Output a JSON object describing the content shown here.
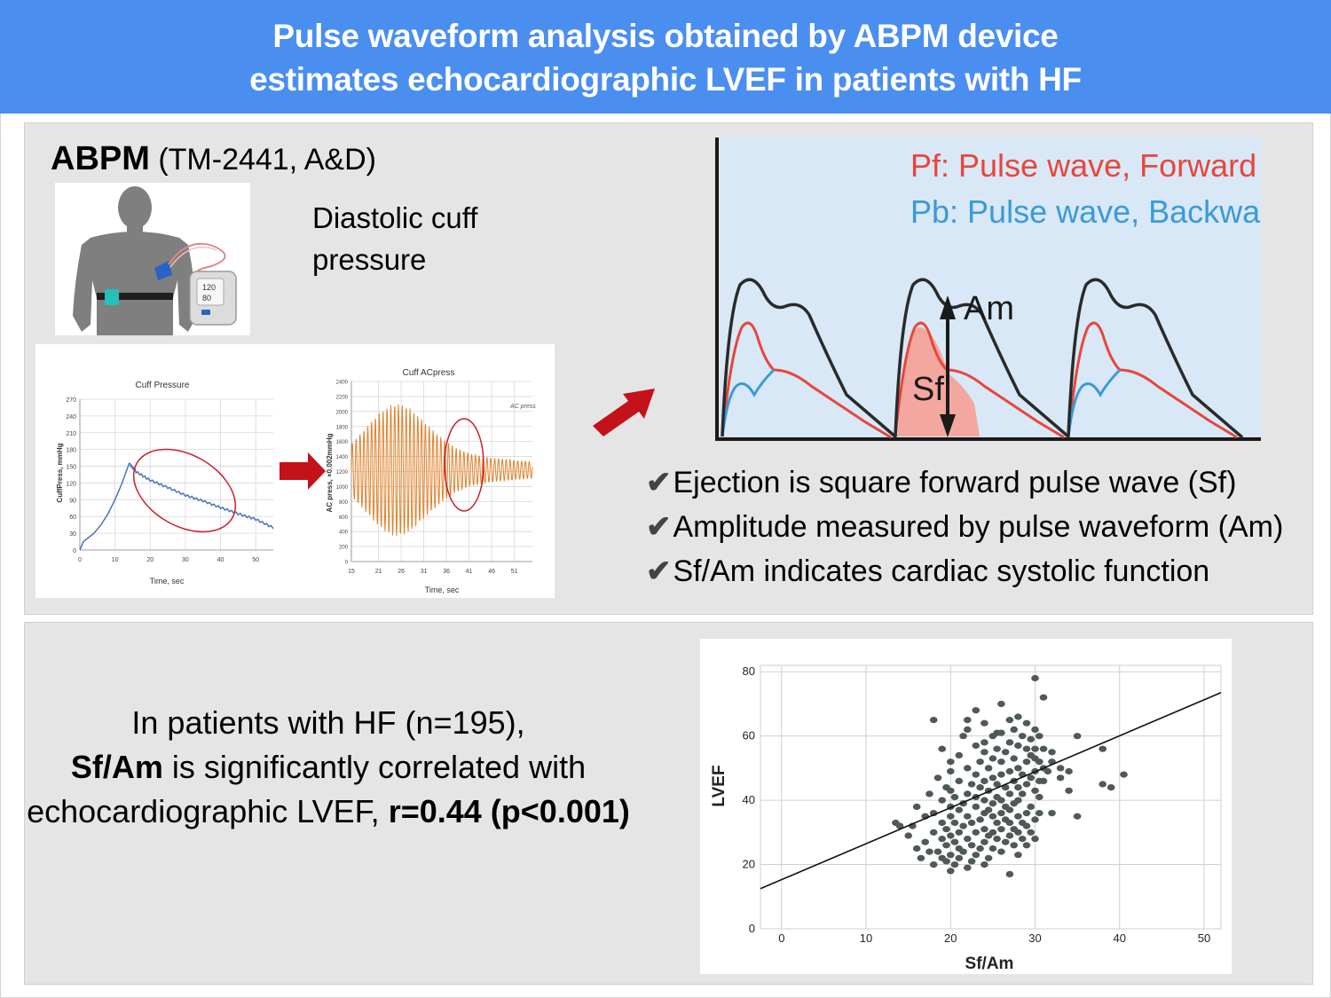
{
  "header": {
    "line1": "Pulse waveform analysis obtained by ABPM device",
    "line2": "estimates echocardiographic LVEF in patients with HF"
  },
  "abpm": {
    "label_bold": "ABPM",
    "label_rest": " (TM-2441, A&D)",
    "diastolic": "Diastolic cuff pressure",
    "monitor_top": "120",
    "monitor_bottom": "80"
  },
  "cuff_chart": {
    "type": "line",
    "title": "Cuff Pressure",
    "xlabel": "Time, sec",
    "ylabel": "CuffPress, mmHg",
    "xticks": [
      "0",
      "10",
      "20",
      "30",
      "40",
      "50"
    ],
    "yticks": [
      "0",
      "30",
      "60",
      "90",
      "120",
      "150",
      "180",
      "210",
      "240",
      "270"
    ],
    "xlim": [
      0,
      55
    ],
    "ylim": [
      0,
      270
    ],
    "x": [
      0,
      1,
      2,
      4,
      6,
      8,
      10,
      12,
      14,
      16,
      20,
      25,
      30,
      35,
      40,
      45,
      50,
      55
    ],
    "y": [
      0,
      15,
      20,
      30,
      45,
      65,
      90,
      120,
      155,
      140,
      125,
      112,
      98,
      88,
      76,
      65,
      55,
      40
    ]
  },
  "ac_chart": {
    "type": "line",
    "title": "Cuff ACpress",
    "xlabel": "Time, sec",
    "ylabel": "AC press, ×0.002mmHg",
    "legend": "AC press",
    "xticks": [
      "15",
      "21",
      "26",
      "31",
      "36",
      "41",
      "46",
      "51"
    ],
    "yticks": [
      "0",
      "200",
      "400",
      "600",
      "800",
      "1000",
      "1200",
      "1400",
      "1600",
      "1800",
      "2000",
      "2200",
      "2400"
    ],
    "xlim": [
      15,
      55
    ],
    "ylim": [
      0,
      2400
    ],
    "center": 1220,
    "envelope_x": [
      15,
      18,
      21,
      24,
      26,
      28,
      31,
      34,
      36,
      38,
      41,
      46,
      51,
      55
    ],
    "envelope_amp": [
      350,
      550,
      750,
      880,
      880,
      820,
      650,
      480,
      380,
      300,
      220,
      160,
      130,
      110
    ]
  },
  "waveform": {
    "legend_forward": "Pf: Pulse wave, Forward",
    "legend_backward": "Pb: Pulse wave, Backward",
    "label_am": "Am",
    "label_sf": "Sf",
    "colors": {
      "forward": "#e8463c",
      "backward": "#3a9ad9",
      "total": "#2a2a2a",
      "fill": "#f4a79e",
      "bg": "#d8e8f6"
    }
  },
  "bullets": [
    "Ejection is square forward pulse wave (Sf)",
    "Amplitude measured by pulse waveform (Am)",
    "Sf/Am indicates cardiac systolic function"
  ],
  "summary": {
    "line1": "In patients with HF (n=195),",
    "line2_bold": "Sf/Am",
    "line2_rest": " is significantly correlated with",
    "line3_rest": "echocardiographic LVEF, ",
    "line3_bold": "r=0.44 (p<0.001)"
  },
  "chart_data": {
    "type": "scatter",
    "xlabel": "Sf/Am",
    "ylabel": "LVEF",
    "xlim": [
      -2.5,
      52
    ],
    "ylim": [
      0,
      82
    ],
    "xticks": [
      "0",
      "10",
      "20",
      "30",
      "40",
      "50"
    ],
    "yticks": [
      "0",
      "20",
      "40",
      "60",
      "80"
    ],
    "grid": true,
    "regression": {
      "x": [
        -2.5,
        52
      ],
      "y": [
        12.5,
        73.5
      ]
    },
    "points": [
      [
        13.5,
        33
      ],
      [
        14,
        32
      ],
      [
        15,
        29
      ],
      [
        15.5,
        32
      ],
      [
        16,
        25
      ],
      [
        16,
        38
      ],
      [
        16.5,
        22
      ],
      [
        17,
        27
      ],
      [
        17,
        35
      ],
      [
        17.5,
        24
      ],
      [
        17.5,
        42
      ],
      [
        18,
        20
      ],
      [
        18,
        30
      ],
      [
        18,
        36
      ],
      [
        18.5,
        24
      ],
      [
        18.5,
        47
      ],
      [
        19,
        22
      ],
      [
        19,
        28
      ],
      [
        19,
        33
      ],
      [
        19,
        40
      ],
      [
        19,
        56
      ],
      [
        19.5,
        21
      ],
      [
        19.5,
        26
      ],
      [
        19.5,
        31
      ],
      [
        19.5,
        44
      ],
      [
        20,
        18
      ],
      [
        20,
        23
      ],
      [
        20,
        29
      ],
      [
        20,
        35
      ],
      [
        20,
        38
      ],
      [
        20,
        43
      ],
      [
        20,
        49
      ],
      [
        20,
        52
      ],
      [
        20.5,
        20
      ],
      [
        20.5,
        27
      ],
      [
        20.5,
        33
      ],
      [
        20.5,
        41
      ],
      [
        21,
        22
      ],
      [
        21,
        25
      ],
      [
        21,
        30
      ],
      [
        21,
        37
      ],
      [
        21,
        46
      ],
      [
        21,
        54
      ],
      [
        21.5,
        24
      ],
      [
        21.5,
        32
      ],
      [
        21.5,
        39
      ],
      [
        21.5,
        60
      ],
      [
        22,
        19
      ],
      [
        22,
        28
      ],
      [
        22,
        35
      ],
      [
        22,
        42
      ],
      [
        22,
        50
      ],
      [
        22,
        62
      ],
      [
        22.5,
        21
      ],
      [
        22.5,
        26
      ],
      [
        22.5,
        33
      ],
      [
        22.5,
        45
      ],
      [
        23,
        23
      ],
      [
        23,
        30
      ],
      [
        23,
        38
      ],
      [
        23,
        41
      ],
      [
        23,
        48
      ],
      [
        23,
        57
      ],
      [
        23,
        68
      ],
      [
        23.5,
        25
      ],
      [
        23.5,
        34
      ],
      [
        23.5,
        44
      ],
      [
        23.5,
        52
      ],
      [
        24,
        20
      ],
      [
        24,
        27
      ],
      [
        24,
        31
      ],
      [
        24,
        36
      ],
      [
        24,
        40
      ],
      [
        24,
        46
      ],
      [
        24,
        55
      ],
      [
        24,
        64
      ],
      [
        24.5,
        22
      ],
      [
        24.5,
        29
      ],
      [
        24.5,
        37
      ],
      [
        24.5,
        43
      ],
      [
        24.5,
        50
      ],
      [
        25,
        25
      ],
      [
        25,
        30
      ],
      [
        25,
        35
      ],
      [
        25,
        39
      ],
      [
        25,
        47
      ],
      [
        25,
        53
      ],
      [
        25,
        60
      ],
      [
        25.5,
        28
      ],
      [
        25.5,
        33
      ],
      [
        25.5,
        41
      ],
      [
        25.5,
        45
      ],
      [
        25.5,
        56
      ],
      [
        26,
        24
      ],
      [
        26,
        31
      ],
      [
        26,
        36
      ],
      [
        26,
        40
      ],
      [
        26,
        48
      ],
      [
        26,
        52
      ],
      [
        26,
        61
      ],
      [
        26,
        70
      ],
      [
        26.5,
        27
      ],
      [
        26.5,
        34
      ],
      [
        26.5,
        38
      ],
      [
        26.5,
        44
      ],
      [
        26.5,
        55
      ],
      [
        27,
        17
      ],
      [
        27,
        29
      ],
      [
        27,
        33
      ],
      [
        27,
        37
      ],
      [
        27,
        42
      ],
      [
        27,
        49
      ],
      [
        27,
        58
      ],
      [
        27,
        65
      ],
      [
        27.5,
        26
      ],
      [
        27.5,
        31
      ],
      [
        27.5,
        39
      ],
      [
        27.5,
        46
      ],
      [
        27.5,
        53
      ],
      [
        27.5,
        62
      ],
      [
        28,
        23
      ],
      [
        28,
        30
      ],
      [
        28,
        35
      ],
      [
        28,
        40
      ],
      [
        28,
        44
      ],
      [
        28,
        50
      ],
      [
        28,
        57
      ],
      [
        28,
        66
      ],
      [
        28.5,
        28
      ],
      [
        28.5,
        33
      ],
      [
        28.5,
        42
      ],
      [
        28.5,
        48
      ],
      [
        28.5,
        60
      ],
      [
        29,
        26
      ],
      [
        29,
        32
      ],
      [
        29,
        36
      ],
      [
        29,
        45
      ],
      [
        29,
        52
      ],
      [
        29,
        56
      ],
      [
        29,
        64
      ],
      [
        29.5,
        30
      ],
      [
        29.5,
        38
      ],
      [
        29.5,
        47
      ],
      [
        29.5,
        54
      ],
      [
        29.5,
        59
      ],
      [
        30,
        28
      ],
      [
        30,
        34
      ],
      [
        30,
        43
      ],
      [
        30,
        49
      ],
      [
        30,
        53
      ],
      [
        30,
        56
      ],
      [
        30,
        62
      ],
      [
        30,
        78
      ],
      [
        30.5,
        36
      ],
      [
        30.5,
        41
      ],
      [
        30.5,
        46
      ],
      [
        30.5,
        52
      ],
      [
        30.5,
        60
      ],
      [
        31,
        46
      ],
      [
        31,
        50
      ],
      [
        31,
        56
      ],
      [
        31,
        72
      ],
      [
        31.5,
        49
      ],
      [
        32,
        52
      ],
      [
        32,
        55
      ],
      [
        32,
        36
      ],
      [
        33,
        47
      ],
      [
        33,
        50
      ],
      [
        34,
        49
      ],
      [
        34,
        43
      ],
      [
        35,
        35
      ],
      [
        35,
        60
      ],
      [
        38,
        45
      ],
      [
        38,
        56
      ],
      [
        39,
        44
      ],
      [
        40.5,
        48
      ],
      [
        24,
        58
      ],
      [
        22,
        65
      ],
      [
        18,
        65
      ],
      [
        25.5,
        61
      ]
    ]
  }
}
